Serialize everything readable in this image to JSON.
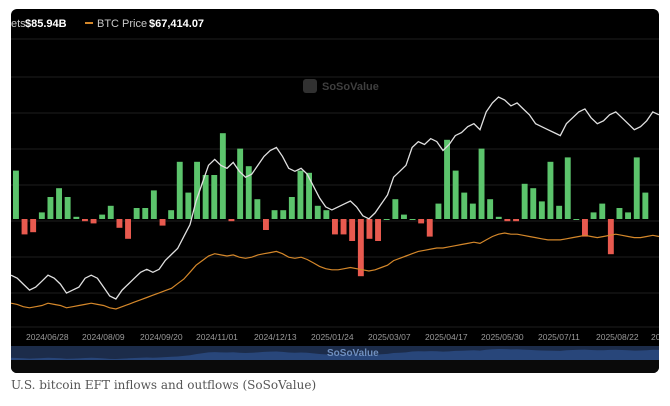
{
  "legend": {
    "flows_label": "ets",
    "flows_value": "$85.94B",
    "price_label": "BTC Price",
    "price_value": "$67,414.07"
  },
  "watermark": "SoSoValue",
  "caption": "U.S. bitcoin EFT inflows and outflows (SoSoValue)",
  "colors": {
    "inflow": "#5cc46c",
    "outflow": "#e85a4f",
    "price_line": "#e0e0e0",
    "assets_line": "#d4872a",
    "navigator_fill": "#28467a",
    "background": "#000000"
  },
  "chart_data": {
    "type": "bar",
    "x_ticks": [
      "2024/06/28",
      "2024/08/09",
      "2024/09/20",
      "2024/11/01",
      "2024/12/13",
      "2025/01/24",
      "2025/03/07",
      "2025/04/17",
      "2025/05/30",
      "2025/07/11",
      "2025/08/22",
      "20"
    ],
    "grid": true,
    "flow_series": [
      2.2,
      -0.7,
      -0.6,
      0.3,
      1.0,
      1.4,
      1.0,
      0.1,
      -0.1,
      -0.2,
      0.2,
      0.6,
      -0.4,
      -0.9,
      0.5,
      0.5,
      1.3,
      -0.3,
      0.4,
      2.6,
      1.2,
      2.6,
      2.0,
      2.0,
      3.9,
      -0.1,
      3.2,
      2.4,
      0.9,
      -0.5,
      0.4,
      0.4,
      1.0,
      2.2,
      2.1,
      0.6,
      0.4,
      -0.7,
      -0.7,
      -1.0,
      -2.6,
      -0.9,
      -1.0,
      0.0,
      0.9,
      0.2,
      0.0,
      -0.2,
      -0.8,
      0.7,
      3.6,
      2.2,
      1.2,
      0.7,
      3.2,
      0.9,
      0.1,
      -0.1,
      -0.1,
      1.6,
      1.4,
      0.8,
      2.6,
      0.6,
      2.8,
      0.0,
      -0.8,
      0.3,
      0.7,
      -1.6,
      0.5,
      0.3,
      2.8,
      1.2
    ],
    "btc_price_series": [
      61,
      60,
      58,
      56,
      57,
      59,
      61,
      60,
      58,
      55,
      56,
      57,
      60,
      61,
      60,
      57,
      54,
      53,
      56,
      58,
      60,
      62,
      63,
      62,
      63,
      66,
      68,
      70,
      74,
      78,
      86,
      92,
      98,
      100,
      98,
      97,
      99,
      96,
      94,
      95,
      98,
      101,
      103,
      104,
      101,
      97,
      96,
      97,
      95,
      91,
      87,
      84,
      83,
      84,
      85,
      86,
      84,
      81,
      80,
      82,
      85,
      88,
      94,
      96,
      98,
      104,
      106,
      105,
      107,
      106,
      103,
      105,
      108,
      109,
      111,
      112,
      110,
      116,
      119,
      121,
      120,
      118,
      119,
      117,
      115,
      112,
      111,
      110,
      109,
      108,
      112,
      114,
      116,
      117,
      114,
      112,
      113,
      115,
      116,
      114,
      112,
      110,
      111,
      113,
      116,
      115
    ],
    "assets_series": [
      55,
      54,
      52,
      51,
      52,
      53,
      55,
      54,
      53,
      51,
      52,
      53,
      54,
      55,
      54,
      53,
      51,
      50,
      52,
      54,
      56,
      58,
      60,
      62,
      64,
      66,
      68,
      72,
      76,
      82,
      88,
      92,
      96,
      98,
      97,
      96,
      97,
      95,
      94,
      95,
      97,
      98,
      99,
      100,
      98,
      95,
      94,
      95,
      93,
      90,
      87,
      85,
      84,
      84,
      85,
      86,
      85,
      84,
      83,
      84,
      86,
      88,
      92,
      94,
      96,
      98,
      100,
      101,
      102,
      103,
      103,
      104,
      105,
      106,
      107,
      108,
      107,
      110,
      113,
      115,
      116,
      115,
      115,
      114,
      113,
      112,
      111,
      110,
      110,
      110,
      111,
      112,
      113,
      114,
      113,
      112,
      113,
      114,
      115,
      114,
      113,
      112,
      112,
      113,
      114,
      113
    ]
  }
}
